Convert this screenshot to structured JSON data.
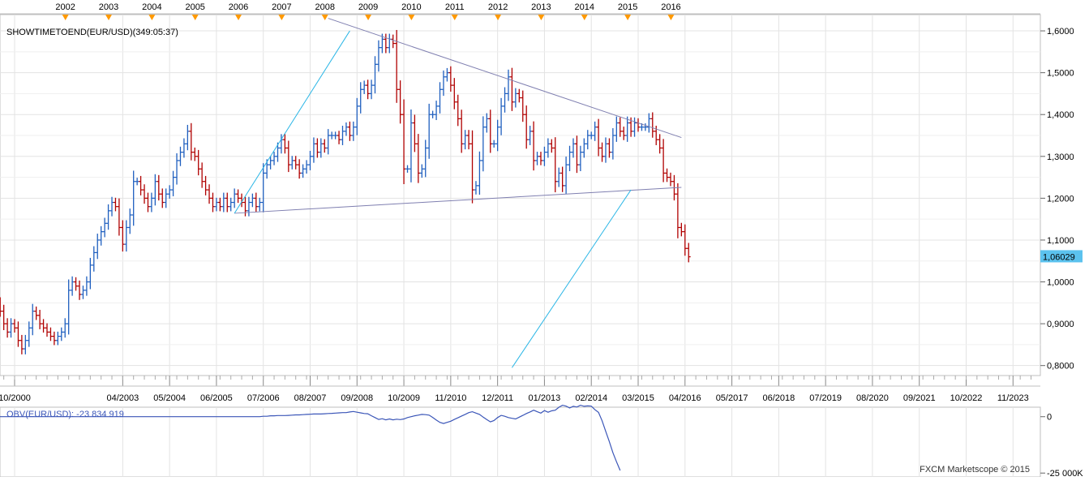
{
  "chart_data": [
    {
      "type": "ohlc",
      "title": "SHOWTIMETOEND(EUR/USD)(349:05:37)",
      "top_years": [
        "2002",
        "2003",
        "2004",
        "2005",
        "2006",
        "2007",
        "2008",
        "2009",
        "2010",
        "2011",
        "2012",
        "2013",
        "2014",
        "2015",
        "2016"
      ],
      "x_tick_labels": [
        "10/2000",
        "04/2003",
        "05/2004",
        "06/2005",
        "07/2006",
        "08/2007",
        "09/2008",
        "10/2009",
        "11/2010",
        "12/2011",
        "01/2013",
        "02/2014",
        "03/2015",
        "04/2016",
        "05/2017",
        "06/2018",
        "07/2019",
        "08/2020",
        "09/2021",
        "10/2022",
        "11/2023"
      ],
      "y_ticks": [
        "1,6000",
        "1,5000",
        "1,4000",
        "1,3000",
        "1,2000",
        "1,1000",
        "1,0000",
        "0,9000",
        "0,8000"
      ],
      "ylim": [
        0.78,
        1.635
      ],
      "last_price": "1,06029",
      "last_price_value": 1.06029,
      "bar_interval": "monthly",
      "closes": [
        0.87,
        0.84,
        0.86,
        0.93,
        0.95,
        0.93,
        0.9,
        0.88,
        0.9,
        0.89,
        0.86,
        0.84,
        0.86,
        0.89,
        0.93,
        0.92,
        0.9,
        0.89,
        0.88,
        0.87,
        0.86,
        0.87,
        0.88,
        0.9,
        0.98,
        1.0,
        0.99,
        0.97,
        0.98,
        1.0,
        1.04,
        1.07,
        1.1,
        1.12,
        1.14,
        1.17,
        1.19,
        1.18,
        1.13,
        1.09,
        1.13,
        1.16,
        1.24,
        1.24,
        1.22,
        1.2,
        1.18,
        1.2,
        1.24,
        1.21,
        1.19,
        1.21,
        1.22,
        1.25,
        1.29,
        1.31,
        1.33,
        1.36,
        1.31,
        1.3,
        1.27,
        1.24,
        1.22,
        1.2,
        1.18,
        1.19,
        1.18,
        1.2,
        1.18,
        1.19,
        1.21,
        1.2,
        1.19,
        1.17,
        1.19,
        1.2,
        1.18,
        1.19,
        1.26,
        1.28,
        1.29,
        1.3,
        1.32,
        1.34,
        1.32,
        1.28,
        1.29,
        1.28,
        1.26,
        1.27,
        1.28,
        1.3,
        1.33,
        1.31,
        1.33,
        1.32,
        1.35,
        1.35,
        1.35,
        1.34,
        1.36,
        1.37,
        1.35,
        1.37,
        1.42,
        1.46,
        1.47,
        1.45,
        1.47,
        1.52,
        1.56,
        1.58,
        1.56,
        1.58,
        1.57,
        1.46,
        1.4,
        1.27,
        1.27,
        1.38,
        1.33,
        1.26,
        1.27,
        1.32,
        1.4,
        1.4,
        1.42,
        1.46,
        1.49,
        1.5,
        1.47,
        1.43,
        1.39,
        1.33,
        1.35,
        1.33,
        1.22,
        1.23,
        1.29,
        1.37,
        1.39,
        1.33,
        1.33,
        1.37,
        1.42,
        1.45,
        1.49,
        1.43,
        1.45,
        1.44,
        1.4,
        1.34,
        1.36,
        1.29,
        1.3,
        1.29,
        1.31,
        1.33,
        1.32,
        1.24,
        1.26,
        1.23,
        1.28,
        1.31,
        1.33,
        1.28,
        1.31,
        1.33,
        1.35,
        1.35,
        1.37,
        1.32,
        1.3,
        1.33,
        1.31,
        1.35,
        1.38,
        1.36,
        1.35,
        1.38,
        1.36,
        1.38,
        1.37,
        1.37,
        1.37,
        1.39,
        1.36,
        1.34,
        1.32,
        1.26,
        1.25,
        1.24,
        1.21,
        1.13,
        1.12,
        1.08,
        1.06
      ],
      "trendlines": [
        {
          "from": [
            "2008-01",
            1.63
          ],
          "to": [
            "2016-03",
            1.345
          ]
        },
        {
          "from": [
            "2005-11",
            1.164
          ],
          "to": [
            "2016-03",
            1.226
          ]
        },
        {
          "from": [
            "2005-11",
            1.164
          ],
          "to": [
            "2008-07",
            1.6
          ]
        },
        {
          "from": [
            "2015-01",
            1.22
          ],
          "to": [
            "2012-04",
            0.795
          ]
        }
      ]
    },
    {
      "type": "line",
      "title": "OBV(EUR/USD): -23 834 919",
      "y_ticks": [
        "0",
        "-25 000K"
      ],
      "ylim": [
        -26000000,
        3500000
      ],
      "values_k": [
        0,
        0,
        0,
        0,
        0,
        0,
        0,
        0,
        0,
        0,
        0,
        0,
        0,
        0,
        0,
        0,
        0,
        0,
        0,
        0,
        0,
        0,
        0,
        0,
        0,
        0,
        0,
        0,
        0,
        0,
        0,
        0,
        0,
        0,
        0,
        0,
        0,
        0,
        0,
        0,
        0,
        0,
        0,
        0,
        0,
        0,
        0,
        0,
        0,
        0,
        0,
        0,
        0,
        0,
        0,
        0,
        0,
        0,
        0,
        0,
        0,
        0,
        0,
        0,
        0,
        0,
        0,
        0,
        0,
        0,
        0,
        0,
        0,
        0,
        0,
        0,
        0,
        0,
        200,
        200,
        400,
        400,
        500,
        500,
        500,
        600,
        700,
        800,
        800,
        900,
        1000,
        1100,
        1200,
        1200,
        1200,
        1300,
        1400,
        1500,
        1600,
        1700,
        1800,
        1800,
        2100,
        2300,
        2000,
        1700,
        1400,
        1300,
        400,
        -400,
        -1200,
        -900,
        -1400,
        -1000,
        -1400,
        -1100,
        -1300,
        -1000,
        -400,
        0,
        400,
        700,
        1000,
        900,
        700,
        -300,
        -1500,
        -2500,
        -3000,
        -2500,
        -2000,
        -1200,
        -500,
        300,
        1000,
        1800,
        2200,
        1600,
        1000,
        -200,
        -1300,
        -2300,
        -1700,
        -400,
        600,
        200,
        -400,
        -700,
        -1000,
        -200,
        600,
        1400,
        2100,
        2900,
        2200,
        1600,
        2700,
        2000,
        2600,
        2900,
        4200,
        5100,
        4700,
        3900,
        4600,
        4300,
        5100,
        4600,
        4800,
        4700,
        3100,
        1900,
        -1800,
        -6500,
        -11000,
        -16000,
        -20000,
        -23834.919
      ]
    }
  ],
  "obv_label": "OBV(EUR/USD): -23 834 919",
  "footer": "FXCM Marketscope © 2015",
  "colors": {
    "up": "#1f5fbf",
    "down": "#b00000",
    "trend": "#7f7fb0",
    "cyan": "#2bb6e6",
    "grid": "#e3e3e3",
    "obv": "#3b56b8",
    "marker": "#ff9900",
    "price_label_bg": "#5bc2ee"
  }
}
